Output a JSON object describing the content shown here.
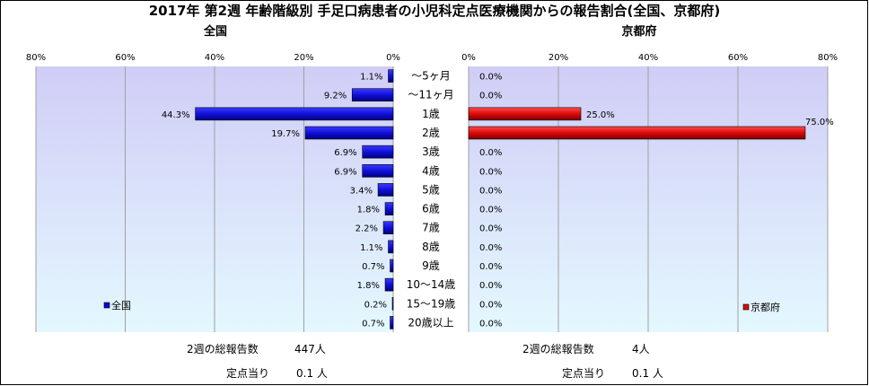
{
  "title": "2017年 第2週 年齢階級別 手足口病患者の小児科定点医療機関からの報告割合(全国、京都府)",
  "colors": {
    "national": "#0a0acd",
    "kyoto": "#dd0a0a",
    "plot_bg_top": "#d0cdf6",
    "plot_bg_bottom": "#e4f8ff"
  },
  "chart_data": [
    {
      "type": "bar",
      "orientation": "horizontal",
      "title": "全国",
      "categories": [
        "～5ヶ月",
        "～11ヶ月",
        "1歳",
        "2歳",
        "3歳",
        "4歳",
        "5歳",
        "6歳",
        "7歳",
        "8歳",
        "9歳",
        "10～14歳",
        "15～19歳",
        "20歳以上"
      ],
      "series": [
        {
          "name": "全国",
          "values": [
            1.1,
            9.2,
            44.3,
            19.7,
            6.9,
            6.9,
            3.4,
            1.8,
            2.2,
            1.1,
            0.7,
            1.8,
            0.2,
            0.7
          ]
        }
      ],
      "value_labels": [
        "1.1%",
        "9.2%",
        "44.3%",
        "19.7%",
        "6.9%",
        "6.9%",
        "3.4%",
        "1.8%",
        "2.2%",
        "1.1%",
        "0.7%",
        "1.8%",
        "0.2%",
        "0.7%"
      ],
      "xlim": [
        0,
        80
      ],
      "x_direction": "reversed",
      "xticks": [
        "80%",
        "60%",
        "40%",
        "20%",
        "0%"
      ],
      "grid": true,
      "legend": "bottom-left"
    },
    {
      "type": "bar",
      "orientation": "horizontal",
      "title": "京都府",
      "categories": [
        "～5ヶ月",
        "～11ヶ月",
        "1歳",
        "2歳",
        "3歳",
        "4歳",
        "5歳",
        "6歳",
        "7歳",
        "8歳",
        "9歳",
        "10～14歳",
        "15～19歳",
        "20歳以上"
      ],
      "series": [
        {
          "name": "京都府",
          "values": [
            0,
            0,
            25.0,
            75.0,
            0,
            0,
            0,
            0,
            0,
            0,
            0,
            0,
            0,
            0
          ]
        }
      ],
      "value_labels": [
        "0.0%",
        "0.0%",
        "25.0%",
        "75.0%",
        "0.0%",
        "0.0%",
        "0.0%",
        "0.0%",
        "0.0%",
        "0.0%",
        "0.0%",
        "0.0%",
        "0.0%",
        "0.0%"
      ],
      "xlim": [
        0,
        80
      ],
      "xticks": [
        "0%",
        "20%",
        "40%",
        "60%",
        "80%"
      ],
      "grid": true,
      "legend": "bottom-right"
    }
  ],
  "footer": {
    "national": {
      "total_label": "2週の総報告数",
      "total_value": "447人",
      "per_label": "定点当り",
      "per_value": "0.1 人"
    },
    "kyoto": {
      "total_label": "2週の総報告数",
      "total_value": "4人",
      "per_label": "定点当り",
      "per_value": "0.1 人"
    }
  }
}
